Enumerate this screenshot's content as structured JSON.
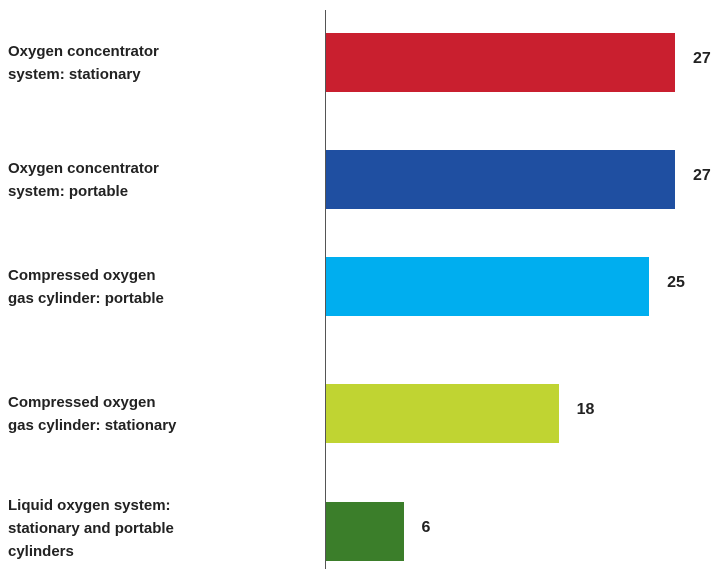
{
  "chart_data": {
    "type": "bar",
    "orientation": "horizontal",
    "categories": [
      "Oxygen concentrator\nsystem: stationary",
      "Oxygen concentrator\nsystem: portable",
      "Compressed oxygen\ngas cylinder: portable",
      "Compressed oxygen\ngas cylinder: stationary",
      "Liquid oxygen system:\nstationary and portable\ncylinders"
    ],
    "values": [
      27,
      27,
      25,
      18,
      6
    ],
    "colors": [
      "#c91f2f",
      "#1f4fa1",
      "#00aeef",
      "#c0d432",
      "#3b7e2a"
    ]
  }
}
